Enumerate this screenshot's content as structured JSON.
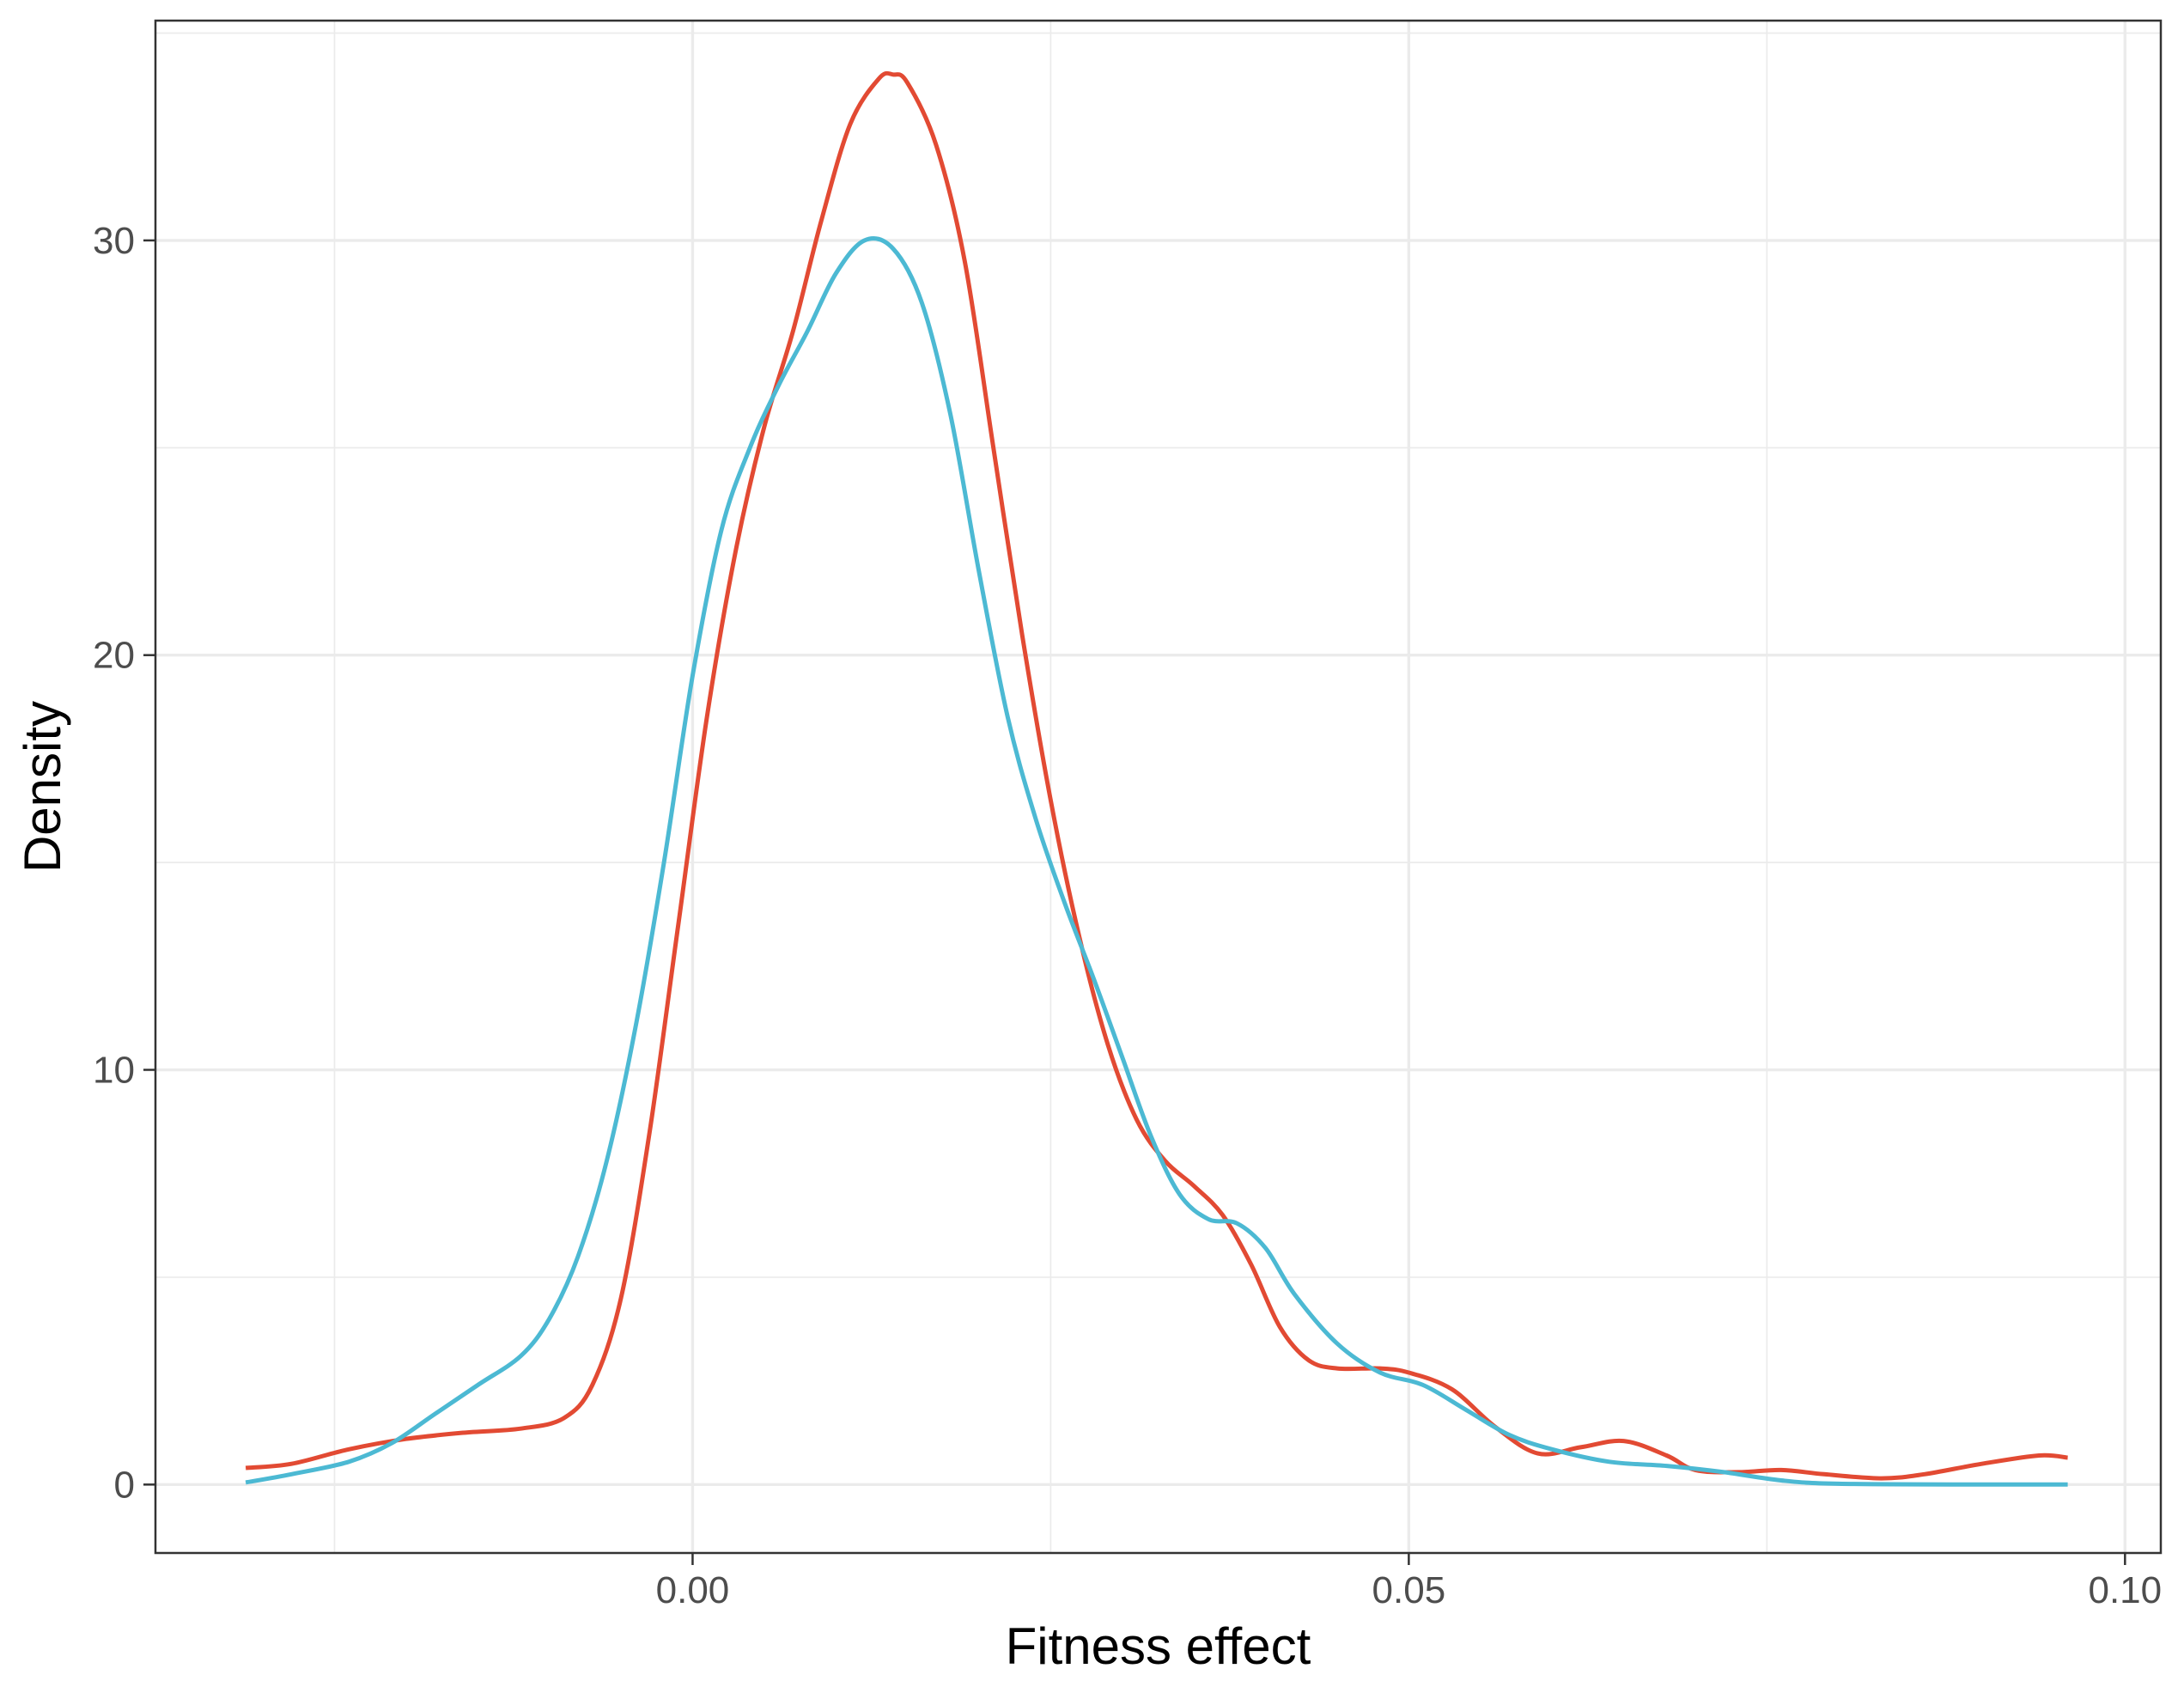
{
  "chart_data": {
    "type": "line",
    "title": "",
    "xlabel": "Fitness effect",
    "ylabel": "Density",
    "xlim": [
      -0.0375,
      0.1025
    ],
    "ylim": [
      -1.65,
      35.3
    ],
    "x_ticks": [
      0.0,
      0.05,
      0.1
    ],
    "x_tick_labels": [
      "0.00",
      "0.05",
      "0.10"
    ],
    "y_ticks": [
      0,
      10,
      20,
      30
    ],
    "y_tick_labels": [
      "0",
      "10",
      "20",
      "30"
    ],
    "grid": true,
    "legend": "none",
    "series": [
      {
        "color": "#E24A33",
        "points": [
          [
            -0.0312,
            0.4
          ],
          [
            -0.028,
            0.5
          ],
          [
            -0.024,
            0.85
          ],
          [
            -0.02,
            1.1
          ],
          [
            -0.016,
            1.25
          ],
          [
            -0.012,
            1.35
          ],
          [
            -0.009,
            1.6
          ],
          [
            -0.007,
            2.4
          ],
          [
            -0.005,
            4.5
          ],
          [
            -0.003,
            8.5
          ],
          [
            -0.001,
            13.5
          ],
          [
            0.001,
            18.5
          ],
          [
            0.003,
            22.5
          ],
          [
            0.005,
            25.5
          ],
          [
            0.007,
            27.8
          ],
          [
            0.009,
            30.5
          ],
          [
            0.011,
            32.8
          ],
          [
            0.013,
            33.9
          ],
          [
            0.014,
            34.0
          ],
          [
            0.015,
            33.8
          ],
          [
            0.017,
            32.3
          ],
          [
            0.019,
            29.5
          ],
          [
            0.021,
            25.0
          ],
          [
            0.023,
            20.5
          ],
          [
            0.025,
            16.5
          ],
          [
            0.027,
            13.2
          ],
          [
            0.029,
            10.6
          ],
          [
            0.031,
            8.8
          ],
          [
            0.033,
            7.8
          ],
          [
            0.035,
            7.2
          ],
          [
            0.037,
            6.5
          ],
          [
            0.039,
            5.3
          ],
          [
            0.041,
            3.8
          ],
          [
            0.043,
            3.0
          ],
          [
            0.045,
            2.8
          ],
          [
            0.048,
            2.8
          ],
          [
            0.05,
            2.7
          ],
          [
            0.053,
            2.3
          ],
          [
            0.056,
            1.4
          ],
          [
            0.059,
            0.75
          ],
          [
            0.062,
            0.9
          ],
          [
            0.065,
            1.05
          ],
          [
            0.068,
            0.7
          ],
          [
            0.07,
            0.35
          ],
          [
            0.073,
            0.3
          ],
          [
            0.076,
            0.35
          ],
          [
            0.079,
            0.25
          ],
          [
            0.083,
            0.15
          ],
          [
            0.086,
            0.25
          ],
          [
            0.09,
            0.5
          ],
          [
            0.094,
            0.7
          ],
          [
            0.096,
            0.65
          ]
        ]
      },
      {
        "color": "#4CB9D3",
        "points": [
          [
            -0.0312,
            0.05
          ],
          [
            -0.028,
            0.25
          ],
          [
            -0.024,
            0.55
          ],
          [
            -0.021,
            1.0
          ],
          [
            -0.018,
            1.7
          ],
          [
            -0.015,
            2.4
          ],
          [
            -0.012,
            3.1
          ],
          [
            -0.01,
            4.0
          ],
          [
            -0.008,
            5.5
          ],
          [
            -0.006,
            7.8
          ],
          [
            -0.004,
            11.0
          ],
          [
            -0.002,
            15.0
          ],
          [
            0.0,
            19.5
          ],
          [
            0.002,
            23.0
          ],
          [
            0.004,
            25.0
          ],
          [
            0.006,
            26.5
          ],
          [
            0.008,
            27.8
          ],
          [
            0.01,
            29.2
          ],
          [
            0.012,
            30.0
          ],
          [
            0.014,
            29.8
          ],
          [
            0.016,
            28.5
          ],
          [
            0.018,
            25.8
          ],
          [
            0.02,
            22.0
          ],
          [
            0.022,
            18.5
          ],
          [
            0.024,
            16.0
          ],
          [
            0.026,
            14.0
          ],
          [
            0.028,
            12.2
          ],
          [
            0.03,
            10.3
          ],
          [
            0.032,
            8.4
          ],
          [
            0.034,
            7.0
          ],
          [
            0.036,
            6.4
          ],
          [
            0.038,
            6.3
          ],
          [
            0.04,
            5.7
          ],
          [
            0.042,
            4.6
          ],
          [
            0.045,
            3.4
          ],
          [
            0.048,
            2.7
          ],
          [
            0.051,
            2.4
          ],
          [
            0.054,
            1.8
          ],
          [
            0.057,
            1.2
          ],
          [
            0.06,
            0.85
          ],
          [
            0.064,
            0.55
          ],
          [
            0.068,
            0.45
          ],
          [
            0.072,
            0.3
          ],
          [
            0.076,
            0.1
          ],
          [
            0.08,
            0.02
          ],
          [
            0.09,
            0.0
          ],
          [
            0.096,
            0.0
          ]
        ]
      }
    ]
  }
}
